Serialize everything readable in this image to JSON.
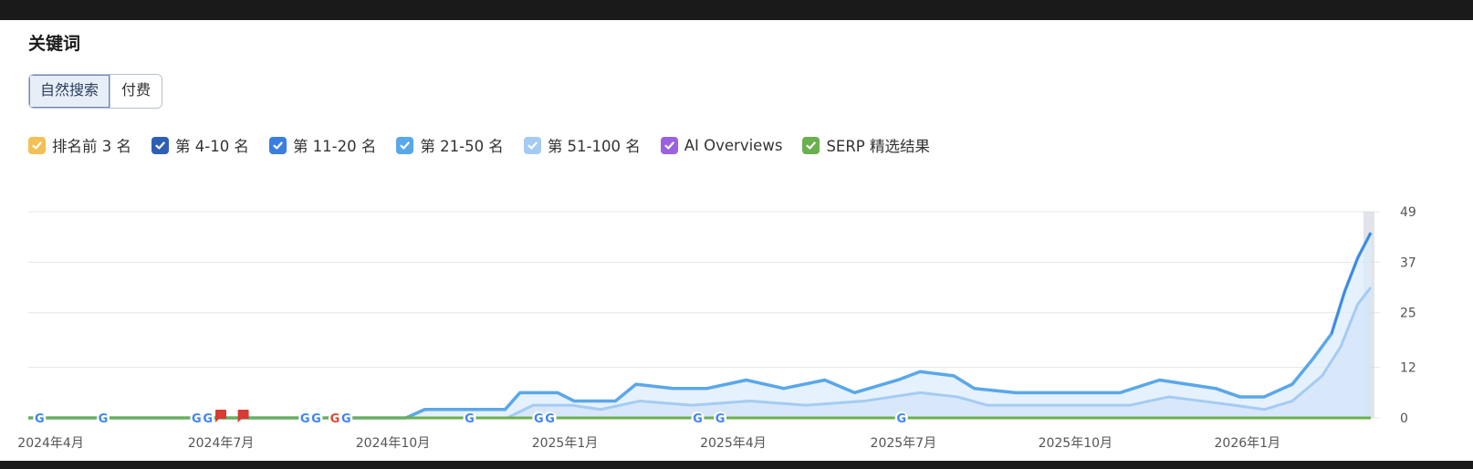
{
  "panel": {
    "title": "关键词"
  },
  "tabs": [
    {
      "label": "自然搜索",
      "active": true
    },
    {
      "label": "付费",
      "active": false
    }
  ],
  "legend": [
    {
      "label": "排名前 3 名",
      "color": "#f2c054",
      "checked": true
    },
    {
      "label": "第 4-10 名",
      "color": "#2e5fb4",
      "checked": true
    },
    {
      "label": "第 11-20 名",
      "color": "#3a7fe0",
      "checked": true
    },
    {
      "label": "第 21-50 名",
      "color": "#5aa7ea",
      "checked": true
    },
    {
      "label": "第 51-100 名",
      "color": "#a5cbf3",
      "checked": true
    },
    {
      "label": "AI Overviews",
      "color": "#9b62e0",
      "checked": true
    },
    {
      "label": "SERP 精选结果",
      "color": "#6ab04c",
      "checked": true
    }
  ],
  "chart_data": {
    "type": "area",
    "title": "",
    "xlabel": "",
    "ylabel": "",
    "x_range": [
      "2024-03-20",
      "2026-03-08"
    ],
    "x_ticks": [
      "2024年4月",
      "2024年7月",
      "2024年10月",
      "2025年1月",
      "2025年4月",
      "2025年7月",
      "2025年10月",
      "2026年1月"
    ],
    "y_ticks": [
      0,
      12,
      25,
      37,
      49
    ],
    "ylim": [
      0,
      49
    ],
    "grid": true,
    "series": [
      {
        "name": "第 21-50 名",
        "color": "#5aa7ea",
        "points": [
          [
            "2024-03-20",
            0
          ],
          [
            "2024-10-08",
            0
          ],
          [
            "2024-10-18",
            2
          ],
          [
            "2024-11-30",
            2
          ],
          [
            "2024-12-08",
            6
          ],
          [
            "2024-12-28",
            6
          ],
          [
            "2025-01-06",
            4
          ],
          [
            "2025-01-28",
            4
          ],
          [
            "2025-02-08",
            8
          ],
          [
            "2025-02-28",
            7
          ],
          [
            "2025-03-18",
            7
          ],
          [
            "2025-04-08",
            9
          ],
          [
            "2025-04-28",
            7
          ],
          [
            "2025-05-20",
            9
          ],
          [
            "2025-06-05",
            6
          ],
          [
            "2025-06-28",
            9
          ],
          [
            "2025-07-10",
            11
          ],
          [
            "2025-07-28",
            10
          ],
          [
            "2025-08-08",
            7
          ],
          [
            "2025-08-30",
            6
          ],
          [
            "2025-10-25",
            6
          ],
          [
            "2025-11-15",
            9
          ],
          [
            "2025-12-15",
            7
          ],
          [
            "2025-12-28",
            5
          ],
          [
            "2026-01-10",
            5
          ],
          [
            "2026-01-25",
            8
          ],
          [
            "2026-02-05",
            14
          ],
          [
            "2026-02-15",
            20
          ],
          [
            "2026-02-22",
            30
          ],
          [
            "2026-03-01",
            38
          ],
          [
            "2026-03-08",
            44
          ]
        ]
      },
      {
        "name": "第 51-100 名",
        "color": "#a5cbf3",
        "points": [
          [
            "2024-03-20",
            0
          ],
          [
            "2024-12-01",
            0
          ],
          [
            "2024-12-15",
            3
          ],
          [
            "2025-01-05",
            3
          ],
          [
            "2025-01-20",
            2
          ],
          [
            "2025-02-10",
            4
          ],
          [
            "2025-03-10",
            3
          ],
          [
            "2025-04-10",
            4
          ],
          [
            "2025-05-10",
            3
          ],
          [
            "2025-06-10",
            4
          ],
          [
            "2025-07-10",
            6
          ],
          [
            "2025-07-30",
            5
          ],
          [
            "2025-08-15",
            3
          ],
          [
            "2025-10-30",
            3
          ],
          [
            "2025-11-20",
            5
          ],
          [
            "2025-12-25",
            3
          ],
          [
            "2026-01-10",
            2
          ],
          [
            "2026-01-25",
            4
          ],
          [
            "2026-02-10",
            10
          ],
          [
            "2026-02-20",
            17
          ],
          [
            "2026-03-01",
            27
          ],
          [
            "2026-03-08",
            31
          ]
        ]
      },
      {
        "name": "SERP 精选结果",
        "color": "#6ab04c",
        "points": [
          [
            "2024-03-20",
            0
          ],
          [
            "2026-03-08",
            0
          ]
        ]
      }
    ],
    "annotations": [
      {
        "date": "2024-03-26",
        "type": "google-update"
      },
      {
        "date": "2024-04-29",
        "type": "google-update"
      },
      {
        "date": "2024-06-18",
        "type": "google-update"
      },
      {
        "date": "2024-06-24",
        "type": "google-update"
      },
      {
        "date": "2024-07-01",
        "type": "flag"
      },
      {
        "date": "2024-07-13",
        "type": "flag"
      },
      {
        "date": "2024-08-15",
        "type": "google-update"
      },
      {
        "date": "2024-08-21",
        "type": "google-update"
      },
      {
        "date": "2024-08-31",
        "type": "google-update-red"
      },
      {
        "date": "2024-09-06",
        "type": "google-update"
      },
      {
        "date": "2024-11-11",
        "type": "google-update"
      },
      {
        "date": "2024-12-18",
        "type": "google-update"
      },
      {
        "date": "2024-12-24",
        "type": "google-update"
      },
      {
        "date": "2025-03-13",
        "type": "google-update"
      },
      {
        "date": "2025-03-25",
        "type": "google-update"
      },
      {
        "date": "2025-06-30",
        "type": "google-update"
      }
    ]
  }
}
